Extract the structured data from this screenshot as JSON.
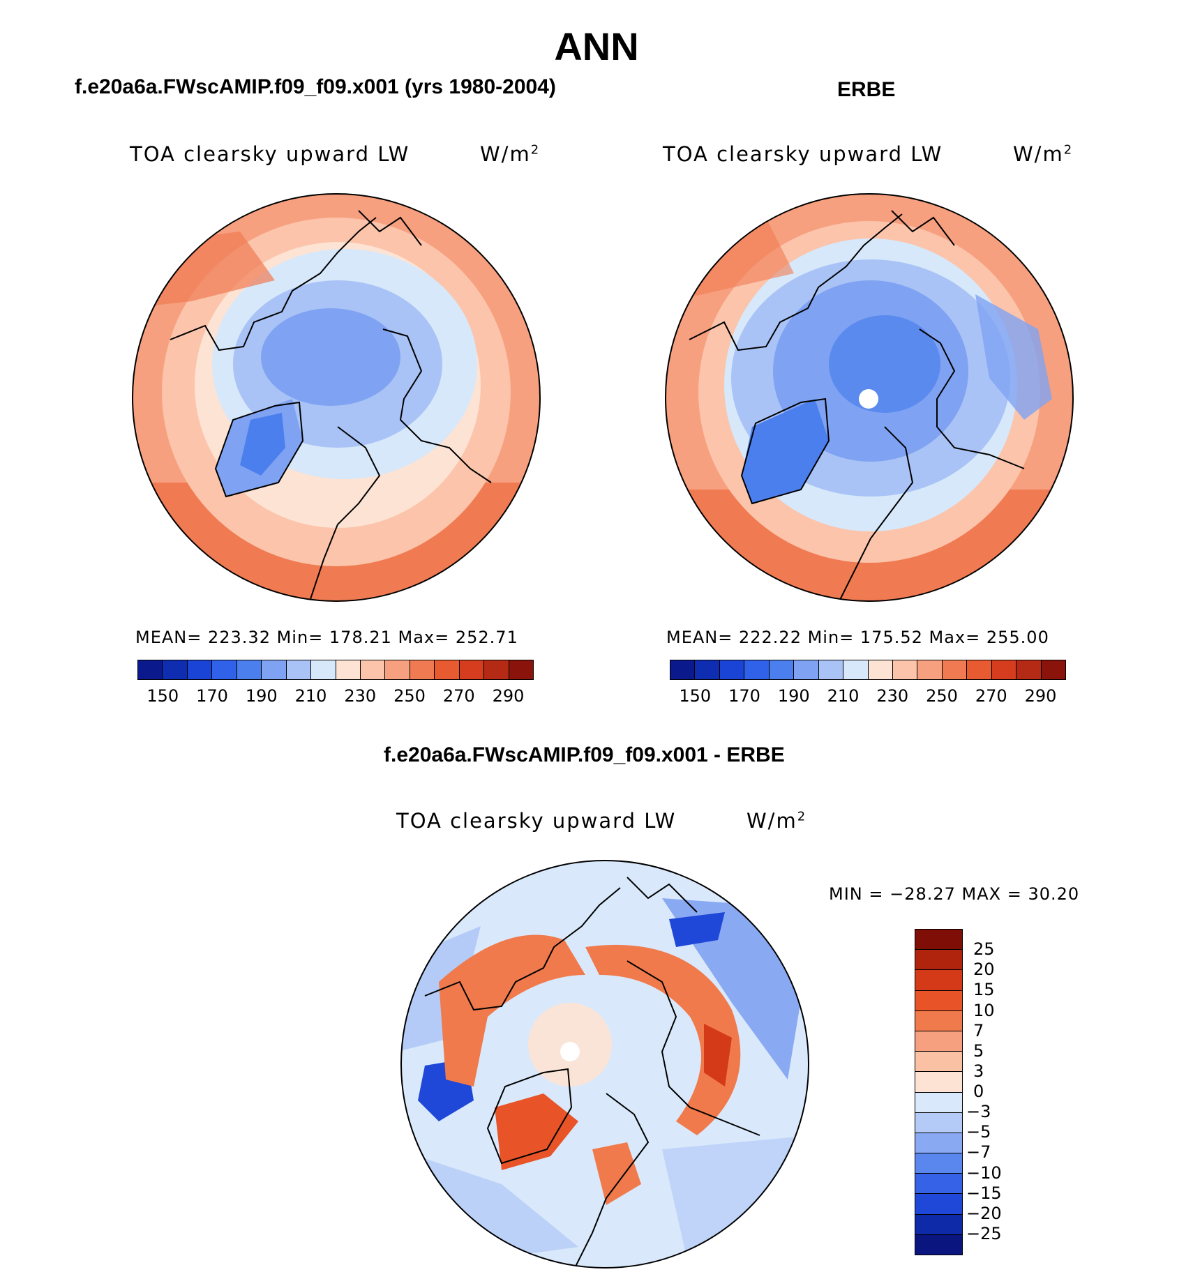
{
  "title": "ANN",
  "palette_abs": [
    "#0a1a8c",
    "#0f2db0",
    "#1a44d6",
    "#2f62e8",
    "#4c7fee",
    "#7fa3f2",
    "#a9c3f6",
    "#d7e8fa",
    "#fde3d3",
    "#fbc4ab",
    "#f7a07f",
    "#f07b52",
    "#e85a30",
    "#d63d1e",
    "#b52a14",
    "#8a130b"
  ],
  "palette_diff": [
    "#0b1580",
    "#0f2aa8",
    "#1f47d8",
    "#3562e6",
    "#5a87ee",
    "#8aa9f3",
    "#b3cbf6",
    "#d9e9fb",
    "#fde3d3",
    "#fbc1a4",
    "#f7a07f",
    "#f07a4b",
    "#e85428",
    "#d43a17",
    "#b0240d",
    "#7f0e06"
  ],
  "colorbar_abs": {
    "labels": [
      "150",
      "170",
      "190",
      "210",
      "230",
      "250",
      "270",
      "290"
    ]
  },
  "colorbar_diff": {
    "labels": [
      "25",
      "20",
      "15",
      "10",
      "7",
      "5",
      "3",
      "0",
      "−3",
      "−5",
      "−7",
      "−10",
      "−15",
      "−20",
      "−25"
    ]
  },
  "chart_data": [
    {
      "type": "heatmap",
      "title": "f.e20a6a.FWscAMIP.f09_f09.x001 (yrs 1980-2004)",
      "variable": "TOA clearsky upward LW",
      "units": "W/m",
      "units_exp": "2",
      "projection": "north-polar-stereographic",
      "stats_text": "MEAN=  223.32   Min=  178.21   Max=  252.71",
      "mean": 223.32,
      "min": 178.21,
      "max": 252.71,
      "levels": [
        140,
        150,
        160,
        170,
        180,
        190,
        200,
        210,
        220,
        230,
        240,
        250,
        260,
        270,
        280,
        290,
        300
      ]
    },
    {
      "type": "heatmap",
      "title": "ERBE",
      "variable": "TOA clearsky upward LW",
      "units": "W/m",
      "units_exp": "2",
      "projection": "north-polar-stereographic",
      "stats_text": "MEAN=  222.22   Min=  175.52   Max=  255.00",
      "mean": 222.22,
      "min": 175.52,
      "max": 255.0,
      "levels": [
        140,
        150,
        160,
        170,
        180,
        190,
        200,
        210,
        220,
        230,
        240,
        250,
        260,
        270,
        280,
        290,
        300
      ]
    },
    {
      "type": "heatmap",
      "title": "f.e20a6a.FWscAMIP.f09_f09.x001 - ERBE",
      "variable": "TOA clearsky upward LW",
      "units": "W/m",
      "units_exp": "2",
      "projection": "north-polar-stereographic",
      "stats_text": "MIN =  −28.27  MAX =   30.20",
      "min": -28.27,
      "max": 30.2,
      "levels": [
        -25,
        -20,
        -15,
        -10,
        -7,
        -5,
        -3,
        0,
        3,
        5,
        7,
        10,
        15,
        20,
        25
      ]
    }
  ]
}
